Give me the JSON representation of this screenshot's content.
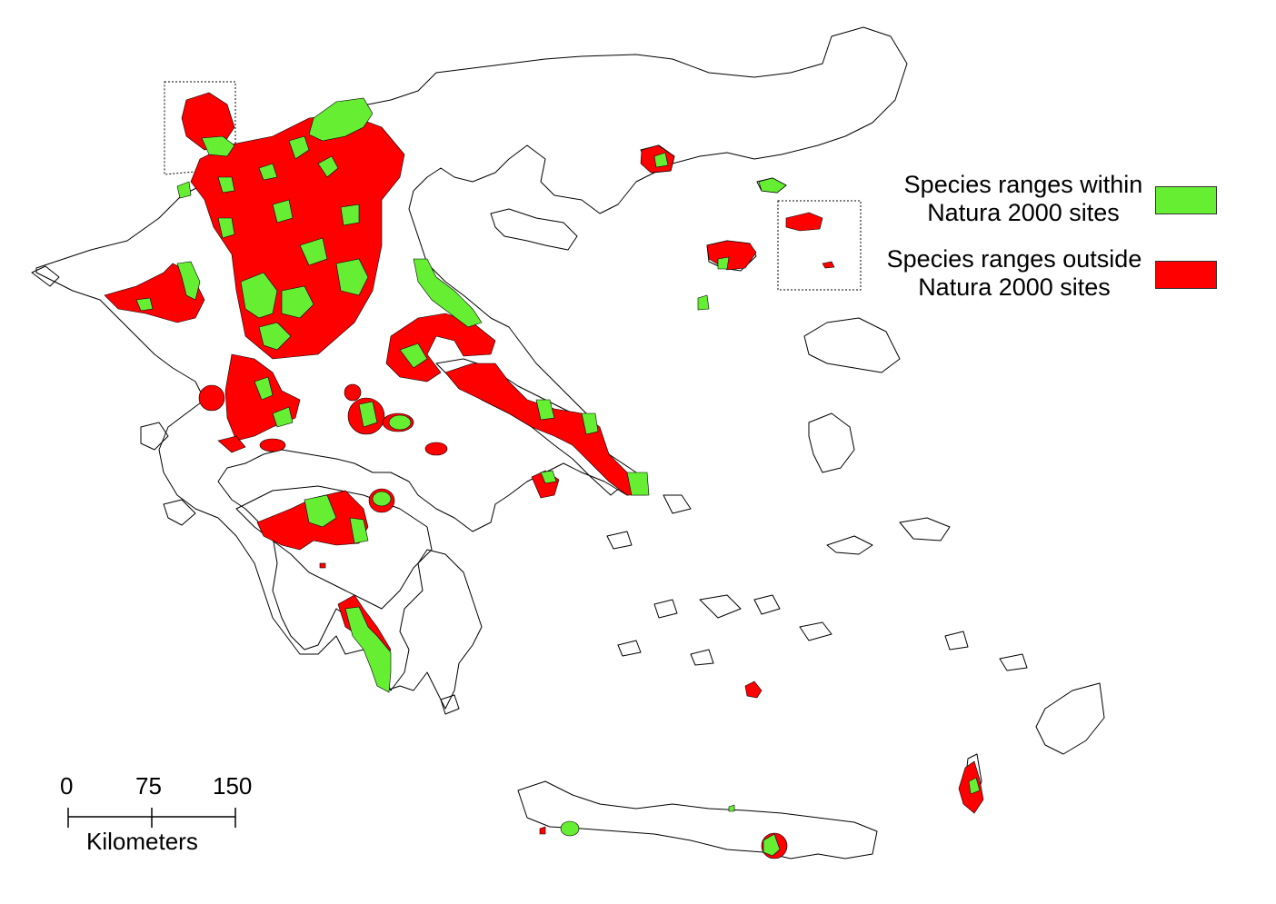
{
  "legend": {
    "items": [
      {
        "line1": "Species ranges within",
        "line2": "Natura 2000 sites",
        "color": "#66ee33"
      },
      {
        "line1": "Species ranges outside",
        "line2": "Natura 2000 sites",
        "color": "#ff0000"
      }
    ]
  },
  "scale_bar": {
    "ticks": [
      "0",
      "75",
      "150"
    ],
    "unit": "Kilometers"
  }
}
